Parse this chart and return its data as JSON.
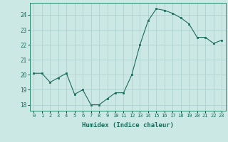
{
  "x": [
    0,
    1,
    2,
    3,
    4,
    5,
    6,
    7,
    8,
    9,
    10,
    11,
    12,
    13,
    14,
    15,
    16,
    17,
    18,
    19,
    20,
    21,
    22,
    23
  ],
  "y": [
    20.1,
    20.1,
    19.5,
    19.8,
    20.1,
    18.7,
    19.0,
    18.0,
    18.0,
    18.4,
    18.8,
    18.8,
    20.0,
    22.0,
    23.6,
    24.4,
    24.3,
    24.1,
    23.8,
    23.4,
    22.5,
    22.5,
    22.1,
    22.3
  ],
  "line_color": "#1a6b5a",
  "marker": "s",
  "marker_size": 2,
  "bg_color": "#cce8e5",
  "grid_color": "#aacfcc",
  "xlabel": "Humidex (Indice chaleur)",
  "xlim": [
    -0.5,
    23.5
  ],
  "ylim": [
    17.6,
    24.8
  ],
  "yticks": [
    18,
    19,
    20,
    21,
    22,
    23,
    24
  ],
  "xticks": [
    0,
    1,
    2,
    3,
    4,
    5,
    6,
    7,
    8,
    9,
    10,
    11,
    12,
    13,
    14,
    15,
    16,
    17,
    18,
    19,
    20,
    21,
    22,
    23
  ],
  "xlabel_fontsize": 6.5,
  "xlabel_color": "#1a6b5a",
  "xtick_fontsize": 5.0,
  "ytick_fontsize": 5.5
}
